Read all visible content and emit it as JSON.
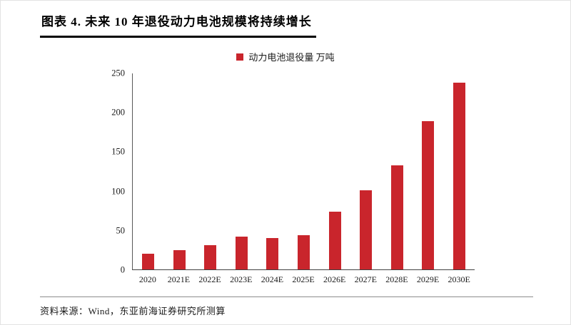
{
  "page": {
    "title": "图表 4.  未来 10 年退役动力电池规模将持续增长",
    "source": "资料来源：Wind，东亚前海证券研究所测算"
  },
  "colors": {
    "bar": "#c9252c",
    "axis": "#404040"
  },
  "chart_data": {
    "type": "bar",
    "title": "图表 4. 未来 10 年退役动力电池规模将持续增长",
    "legend": [
      "动力电池退役量 万吨"
    ],
    "legend_position": "top",
    "categories": [
      "2020",
      "2021E",
      "2022E",
      "2023E",
      "2024E",
      "2025E",
      "2026E",
      "2027E",
      "2028E",
      "2029E",
      "2030E"
    ],
    "values": [
      20,
      25,
      31,
      42,
      40,
      44,
      74,
      101,
      133,
      189,
      238
    ],
    "xlabel": "",
    "ylabel": "万吨",
    "ylim": [
      0,
      250
    ],
    "yticks": [
      0,
      50,
      100,
      150,
      200,
      250
    ],
    "grid": false
  }
}
